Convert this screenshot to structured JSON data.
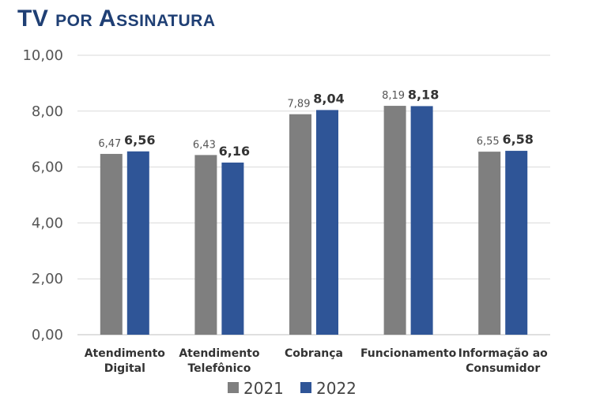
{
  "title": "TV por Assinatura",
  "chart_data": {
    "type": "bar",
    "categories": [
      [
        "Atendimento",
        "Digital"
      ],
      [
        "Atendimento",
        "Telefônico"
      ],
      [
        "Cobrança"
      ],
      [
        "Funcionamento"
      ],
      [
        "Informação ao",
        "Consumidor"
      ]
    ],
    "series": [
      {
        "name": "2021",
        "color": "#7f7f7f",
        "values": [
          6.47,
          6.43,
          7.89,
          8.19,
          6.55
        ],
        "labels": [
          "6,47",
          "6,43",
          "7,89",
          "8,19",
          "6,55"
        ]
      },
      {
        "name": "2022",
        "color": "#2f5597",
        "values": [
          6.56,
          6.16,
          8.04,
          8.18,
          6.58
        ],
        "labels": [
          "6,56",
          "6,16",
          "8,04",
          "8,18",
          "6,58"
        ]
      }
    ],
    "ylim": [
      0,
      10
    ],
    "yticks": [
      0,
      2,
      4,
      6,
      8,
      10
    ],
    "ytick_labels": [
      "0,00",
      "2,00",
      "4,00",
      "6,00",
      "8,00",
      "10,00"
    ],
    "grid": true,
    "legend": "bottom"
  }
}
